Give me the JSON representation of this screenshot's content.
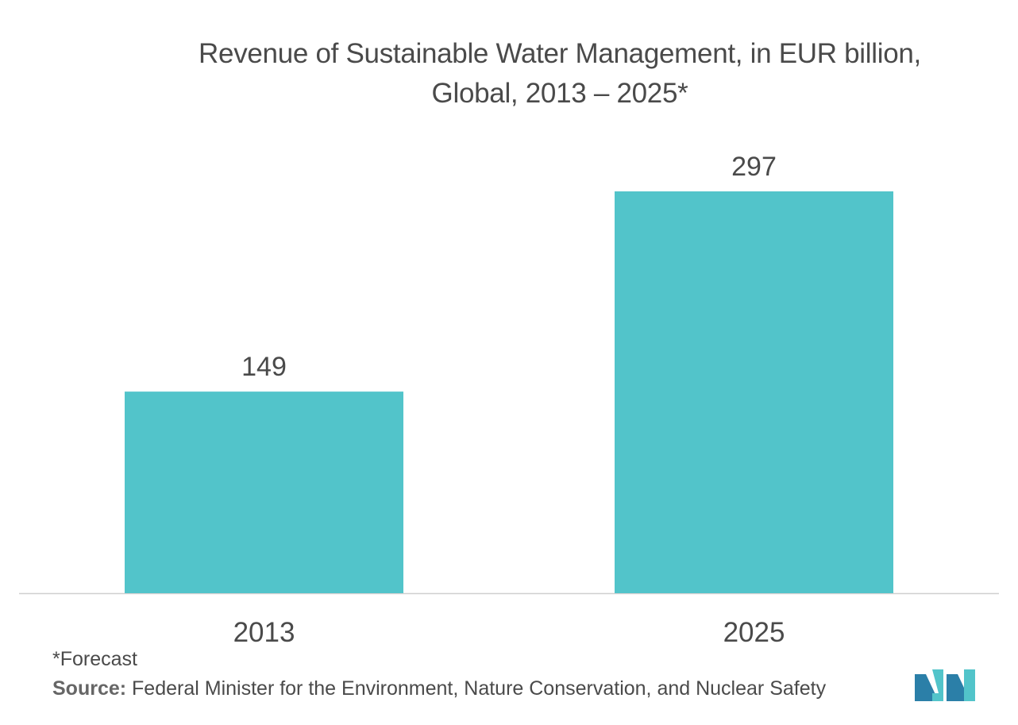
{
  "title_line1": "Revenue of Sustainable Water Management, in EUR billion,",
  "title_line2": "Global, 2013 – 2025*",
  "footnote": "*Forecast",
  "source_label": "Source:",
  "source_text": " Federal Minister for the Environment, Nature Conservation, and Nuclear Safety",
  "colors": {
    "bar": "#52c4ca",
    "axis": "#d0d0d0",
    "label": "#4a4a4a",
    "logo_dark": "#2b7fa8",
    "logo_light": "#52c4ca"
  },
  "logo_icon": "mordor-intelligence-logo-icon",
  "chart_data": {
    "type": "bar",
    "categories": [
      "2013",
      "2025"
    ],
    "values": [
      149,
      297
    ],
    "ylim": [
      0,
      297
    ],
    "grid": false,
    "legend": "none",
    "data_labels": true
  }
}
